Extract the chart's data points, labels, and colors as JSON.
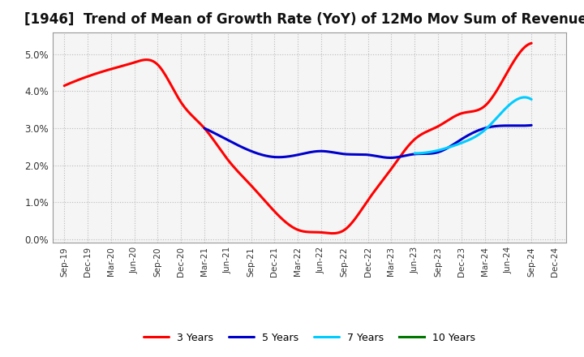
{
  "title": "[1946]  Trend of Mean of Growth Rate (YoY) of 12Mo Mov Sum of Revenues",
  "x_labels": [
    "Sep-19",
    "Dec-19",
    "Mar-20",
    "Jun-20",
    "Sep-20",
    "Dec-20",
    "Mar-21",
    "Jun-21",
    "Sep-21",
    "Dec-21",
    "Mar-22",
    "Jun-22",
    "Sep-22",
    "Dec-22",
    "Mar-23",
    "Jun-23",
    "Sep-23",
    "Dec-23",
    "Mar-24",
    "Jun-24",
    "Sep-24",
    "Dec-24"
  ],
  "ylim": [
    -0.001,
    0.056
  ],
  "yticks": [
    0.0,
    0.01,
    0.02,
    0.03,
    0.04,
    0.05
  ],
  "line_3y": {
    "label": "3 Years",
    "color": "#FF0000",
    "data_x": [
      0,
      1,
      2,
      3,
      4,
      5,
      6,
      7,
      8,
      9,
      10,
      11,
      12,
      13,
      14,
      15,
      16,
      17,
      18,
      19,
      20
    ],
    "data_y": [
      0.0415,
      0.044,
      0.046,
      0.0478,
      0.0472,
      0.037,
      0.03,
      0.0215,
      0.0145,
      0.0075,
      0.0025,
      0.0018,
      0.0025,
      0.0105,
      0.019,
      0.027,
      0.0305,
      0.034,
      0.036,
      0.0455,
      0.053
    ]
  },
  "line_5y": {
    "label": "5 Years",
    "color": "#0000CC",
    "data_x": [
      6,
      7,
      8,
      9,
      10,
      11,
      12,
      13,
      14,
      15,
      16,
      17,
      18,
      19,
      20
    ],
    "data_y": [
      0.03,
      0.0268,
      0.0238,
      0.0222,
      0.0228,
      0.0238,
      0.023,
      0.0228,
      0.022,
      0.023,
      0.0235,
      0.027,
      0.03,
      0.0307,
      0.0308
    ]
  },
  "line_7y": {
    "label": "7 Years",
    "color": "#00CCFF",
    "data_x": [
      15,
      16,
      17,
      18,
      19,
      20
    ],
    "data_y": [
      0.0232,
      0.024,
      0.026,
      0.0295,
      0.036,
      0.0378
    ]
  },
  "line_10y": {
    "label": "10 Years",
    "color": "#007700",
    "data_x": [],
    "data_y": []
  },
  "background_color": "#FFFFFF",
  "plot_bg_color": "#F5F5F5",
  "grid_color": "#BBBBBB",
  "title_fontsize": 12,
  "legend_fontsize": 9
}
